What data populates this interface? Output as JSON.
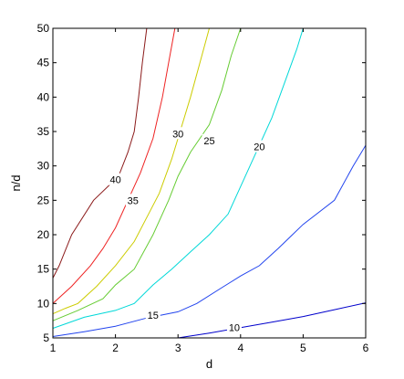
{
  "chart_data": {
    "type": "line",
    "subtype": "contour",
    "title": "",
    "xlabel": "d",
    "ylabel": "n/d",
    "xlim": [
      1,
      6
    ],
    "ylim": [
      5,
      50
    ],
    "xticks": [
      1,
      2,
      3,
      4,
      5,
      6
    ],
    "yticks": [
      5,
      10,
      15,
      20,
      25,
      30,
      35,
      40,
      45,
      50
    ],
    "grid": false,
    "series": [
      {
        "name": "10",
        "color": "#0000cc",
        "label_at": [
          3.9,
          6.5
        ],
        "points": [
          [
            3.0,
            5.0
          ],
          [
            3.5,
            5.7
          ],
          [
            4.0,
            6.5
          ],
          [
            4.5,
            7.3
          ],
          [
            5.0,
            8.1
          ],
          [
            5.5,
            9.1
          ],
          [
            6.0,
            10.1
          ]
        ]
      },
      {
        "name": "15",
        "color": "#2244ee",
        "label_at": [
          2.6,
          8.3
        ],
        "points": [
          [
            1.0,
            5.2
          ],
          [
            1.5,
            5.9
          ],
          [
            2.0,
            6.7
          ],
          [
            2.5,
            7.9
          ],
          [
            3.0,
            8.8
          ],
          [
            3.3,
            10.0
          ],
          [
            3.7,
            12.3
          ],
          [
            4.0,
            14.0
          ],
          [
            4.3,
            15.5
          ],
          [
            4.6,
            18.0
          ],
          [
            5.0,
            21.5
          ],
          [
            5.5,
            25.0
          ],
          [
            5.8,
            30.0
          ],
          [
            6.0,
            33.0
          ]
        ]
      },
      {
        "name": "20",
        "color": "#00d8d8",
        "label_at": [
          4.3,
          32.8
        ],
        "points": [
          [
            1.0,
            6.4
          ],
          [
            1.5,
            8.0
          ],
          [
            2.0,
            9.0
          ],
          [
            2.3,
            10.0
          ],
          [
            2.6,
            12.7
          ],
          [
            2.9,
            15.0
          ],
          [
            3.2,
            17.5
          ],
          [
            3.5,
            20.0
          ],
          [
            3.8,
            23.0
          ],
          [
            4.0,
            27.0
          ],
          [
            4.25,
            32.0
          ],
          [
            4.5,
            37.0
          ],
          [
            4.7,
            42.0
          ],
          [
            4.9,
            47.0
          ],
          [
            5.0,
            50.0
          ]
        ]
      },
      {
        "name": "25",
        "color": "#66cc33",
        "label_at": [
          3.5,
          33.7
        ],
        "points": [
          [
            1.0,
            7.5
          ],
          [
            1.4,
            9.0
          ],
          [
            1.8,
            10.7
          ],
          [
            2.0,
            12.7
          ],
          [
            2.3,
            15.0
          ],
          [
            2.6,
            20.0
          ],
          [
            2.85,
            25.0
          ],
          [
            3.0,
            28.5
          ],
          [
            3.2,
            32.0
          ],
          [
            3.5,
            36.0
          ],
          [
            3.7,
            41.0
          ],
          [
            3.85,
            46.0
          ],
          [
            4.0,
            50.0
          ]
        ]
      },
      {
        "name": "30",
        "color": "#cccc00",
        "label_at": [
          3.0,
          34.7
        ],
        "points": [
          [
            1.0,
            8.5
          ],
          [
            1.2,
            9.3
          ],
          [
            1.4,
            10.0
          ],
          [
            1.7,
            12.5
          ],
          [
            2.0,
            15.5
          ],
          [
            2.3,
            19.0
          ],
          [
            2.5,
            22.5
          ],
          [
            2.7,
            26.0
          ],
          [
            2.9,
            31.0
          ],
          [
            3.0,
            34.0
          ],
          [
            3.2,
            40.0
          ],
          [
            3.35,
            45.0
          ],
          [
            3.5,
            50.0
          ]
        ]
      },
      {
        "name": "35",
        "color": "#ee2222",
        "label_at": [
          2.28,
          25.0
        ],
        "points": [
          [
            1.0,
            10.0
          ],
          [
            1.3,
            12.5
          ],
          [
            1.6,
            15.5
          ],
          [
            1.8,
            18.0
          ],
          [
            2.0,
            21.0
          ],
          [
            2.2,
            25.0
          ],
          [
            2.4,
            29.0
          ],
          [
            2.6,
            34.0
          ],
          [
            2.75,
            40.0
          ],
          [
            2.85,
            45.0
          ],
          [
            2.95,
            50.0
          ]
        ]
      },
      {
        "name": "40",
        "color": "#8b1a1a",
        "label_at": [
          2.0,
          28.0
        ],
        "points": [
          [
            1.0,
            13.7
          ],
          [
            1.1,
            15.5
          ],
          [
            1.3,
            20.0
          ],
          [
            1.65,
            25.0
          ],
          [
            2.05,
            28.5
          ],
          [
            2.2,
            32.0
          ],
          [
            2.3,
            35.0
          ],
          [
            2.37,
            40.0
          ],
          [
            2.43,
            45.0
          ],
          [
            2.5,
            50.0
          ]
        ]
      }
    ]
  }
}
